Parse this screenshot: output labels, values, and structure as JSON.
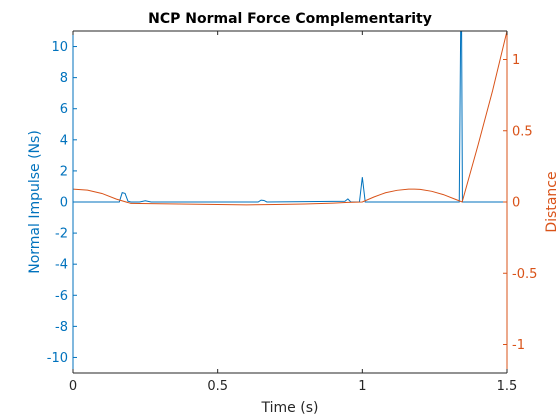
{
  "chart_data": {
    "type": "line",
    "title": "NCP Normal Force Complementarity",
    "xlabel": "Time (s)",
    "ylabel_left": "Normal Impulse (Ns)",
    "ylabel_right": "Distance",
    "xlim": [
      0,
      1.5
    ],
    "ylim_left": [
      -11,
      11
    ],
    "ylim_right": [
      -1.2,
      1.2
    ],
    "x_ticks": [
      {
        "value": 0,
        "label": "0"
      },
      {
        "value": 0.5,
        "label": "0.5"
      },
      {
        "value": 1,
        "label": "1"
      },
      {
        "value": 1.5,
        "label": "1.5"
      }
    ],
    "y_ticks_left": [
      {
        "value": -10,
        "label": "-10"
      },
      {
        "value": -8,
        "label": "-8"
      },
      {
        "value": -6,
        "label": "-6"
      },
      {
        "value": -4,
        "label": "-4"
      },
      {
        "value": -2,
        "label": "-2"
      },
      {
        "value": 0,
        "label": "0"
      },
      {
        "value": 2,
        "label": "2"
      },
      {
        "value": 4,
        "label": "4"
      },
      {
        "value": 6,
        "label": "6"
      },
      {
        "value": 8,
        "label": "8"
      },
      {
        "value": 10,
        "label": "10"
      }
    ],
    "y_ticks_right": [
      {
        "value": -1,
        "label": "-1"
      },
      {
        "value": -0.5,
        "label": "-0.5"
      },
      {
        "value": 0,
        "label": "0"
      },
      {
        "value": 0.5,
        "label": "0.5"
      },
      {
        "value": 1,
        "label": "1"
      }
    ],
    "grid": false,
    "colors": {
      "left_axis": "#0072BD",
      "right_axis": "#D95319",
      "frame": "#262626"
    },
    "series": [
      {
        "axis": "left",
        "color": "#0072BD",
        "x": [
          0,
          0.16,
          0.17,
          0.18,
          0.19,
          0.2,
          0.23,
          0.25,
          0.27,
          0.64,
          0.65,
          0.66,
          0.67,
          0.94,
          0.95,
          0.96,
          0.99,
          1.0,
          1.01,
          1.335,
          1.34,
          1.343,
          1.346,
          1.5
        ],
        "y": [
          0,
          0,
          0.6,
          0.55,
          0.05,
          0,
          0,
          0.08,
          0,
          0,
          0.12,
          0.1,
          0,
          0.05,
          0.2,
          0,
          0,
          1.6,
          0,
          0,
          11.5,
          11.5,
          0,
          0
        ]
      },
      {
        "axis": "right",
        "color": "#D95319",
        "x": [
          0,
          0.05,
          0.1,
          0.15,
          0.2,
          0.3,
          0.4,
          0.5,
          0.6,
          0.7,
          0.8,
          0.9,
          0.95,
          1.0,
          1.04,
          1.08,
          1.12,
          1.16,
          1.18,
          1.2,
          1.24,
          1.28,
          1.32,
          1.345,
          1.4,
          1.45,
          1.5
        ],
        "y": [
          0.09,
          0.083,
          0.06,
          0.02,
          -0.01,
          -0.012,
          -0.015,
          -0.018,
          -0.02,
          -0.018,
          -0.014,
          -0.008,
          -0.003,
          0,
          0.035,
          0.065,
          0.082,
          0.09,
          0.09,
          0.089,
          0.075,
          0.052,
          0.02,
          0,
          0.4,
          0.78,
          1.2
        ]
      }
    ]
  }
}
